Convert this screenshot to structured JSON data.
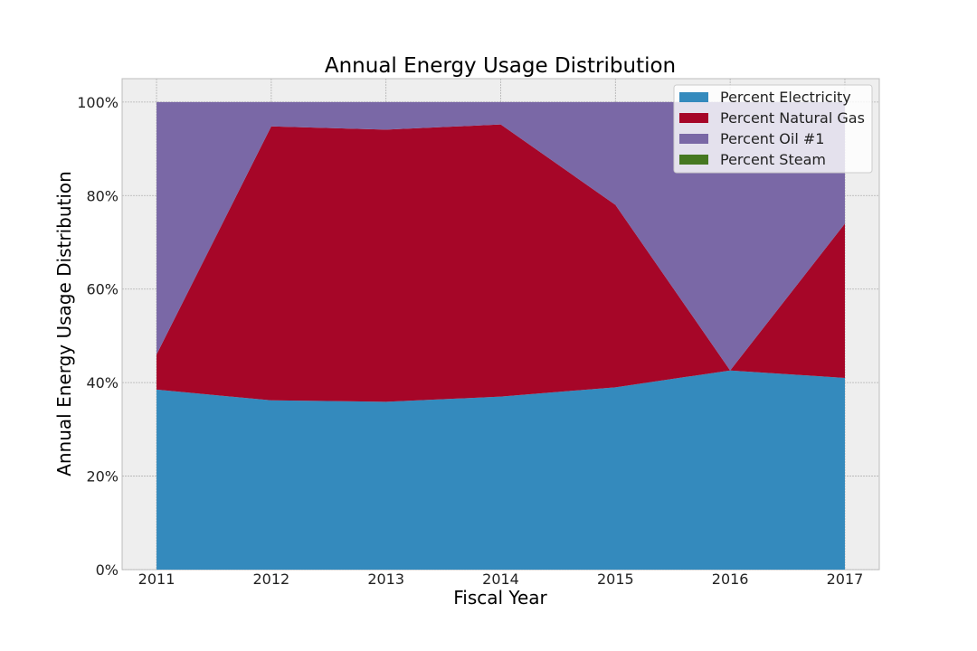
{
  "chart_data": {
    "type": "area",
    "stacked": true,
    "title": "Annual Energy Usage Distribution",
    "xlabel": "Fiscal Year",
    "ylabel": "Annual Energy Usage Distribution",
    "x": [
      2011,
      2012,
      2013,
      2014,
      2015,
      2016,
      2017
    ],
    "x_tick_labels": [
      "2011",
      "2012",
      "2013",
      "2014",
      "2015",
      "2016",
      "2017"
    ],
    "ylim": [
      0,
      105
    ],
    "y_ticks": [
      0,
      20,
      40,
      60,
      80,
      100
    ],
    "y_tick_labels": [
      "0%",
      "20%",
      "40%",
      "60%",
      "80%",
      "100%"
    ],
    "grid": true,
    "legend_position": "top-right",
    "series": [
      {
        "name": "Percent Electricity",
        "color": "#348abd",
        "values": [
          38.5,
          36.2,
          35.9,
          37.0,
          39.0,
          42.6,
          41.0
        ]
      },
      {
        "name": "Percent Natural Gas",
        "color": "#a60628",
        "values": [
          7.5,
          58.6,
          58.2,
          58.2,
          39.0,
          0.0,
          33.0
        ]
      },
      {
        "name": "Percent Oil #1",
        "color": "#7a68a6",
        "values": [
          54.0,
          5.2,
          5.9,
          4.8,
          22.0,
          57.4,
          26.0
        ]
      },
      {
        "name": "Percent Steam",
        "color": "#467821",
        "values": [
          0,
          0,
          0,
          0,
          0,
          0,
          0
        ]
      }
    ]
  }
}
